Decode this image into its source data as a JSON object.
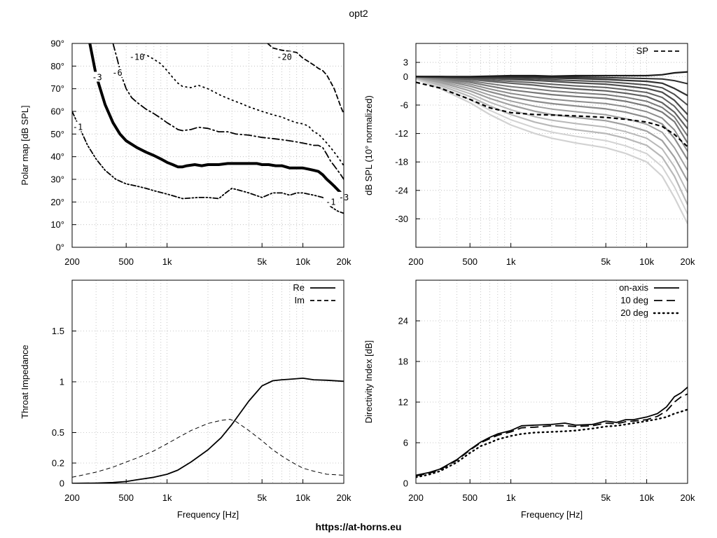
{
  "figure": {
    "title": "opt2",
    "footer": "https://at-horns.eu"
  },
  "chart_data": [
    {
      "id": "polar",
      "type": "line",
      "subtype": "contour",
      "ylabel": "Polar map [dB SPL]",
      "xlabel": "",
      "xscale": "log",
      "xlim": [
        200,
        20000
      ],
      "ylim": [
        0,
        90
      ],
      "xticks": [
        200,
        500,
        1000,
        5000,
        10000,
        20000
      ],
      "xtick_labels": [
        "200",
        "500",
        "1k",
        "5k",
        "10k",
        "20k"
      ],
      "yticks": [
        0,
        10,
        20,
        30,
        40,
        50,
        60,
        70,
        80,
        90
      ],
      "ytick_labels": [
        "0°",
        "10°",
        "20°",
        "30°",
        "40°",
        "50°",
        "60°",
        "70°",
        "80°",
        "90°"
      ],
      "grid": true,
      "series": [
        {
          "label": "-1",
          "style": "dashdotdot",
          "width": 1.8,
          "x": [
            200,
            230,
            260,
            300,
            350,
            420,
            500,
            600,
            700,
            800,
            1000,
            1300,
            1700,
            2000,
            2400,
            2700,
            3000,
            3500,
            4000,
            5000,
            6000,
            7000,
            8000,
            9000,
            10000,
            12000,
            14000,
            16000,
            18000,
            20000
          ],
          "y": [
            60,
            52,
            45,
            39,
            34,
            30,
            28,
            27,
            26,
            25,
            23.5,
            21.5,
            22,
            22,
            21.5,
            24,
            26,
            25,
            24,
            22,
            24,
            24,
            23,
            24,
            24,
            23,
            22,
            18,
            16,
            15
          ]
        },
        {
          "label": "-3",
          "style": "solid",
          "width": 4,
          "x": [
            270,
            300,
            350,
            400,
            450,
            500,
            600,
            700,
            800,
            900,
            1000,
            1100,
            1200,
            1300,
            1400,
            1600,
            1800,
            2000,
            2400,
            2800,
            3200,
            3600,
            4000,
            4600,
            5000,
            5600,
            6300,
            7000,
            8000,
            9000,
            10000,
            11000,
            12000,
            13000,
            14000,
            15000,
            16000,
            17000,
            18000,
            19000
          ],
          "y": [
            90,
            76,
            63,
            55,
            50,
            47,
            44,
            42,
            40.5,
            39,
            37.5,
            36.5,
            35.5,
            35.5,
            36,
            36.5,
            36,
            36.5,
            36.5,
            37,
            37,
            37,
            37,
            37,
            36.5,
            36.5,
            36,
            36,
            35,
            35,
            35,
            34.5,
            34,
            33.5,
            32,
            30,
            28.5,
            27,
            25.5,
            24
          ]
        },
        {
          "label": "-6",
          "style": "dashdot",
          "width": 1.8,
          "x": [
            400,
            430,
            460,
            500,
            550,
            600,
            700,
            800,
            900,
            1000,
            1100,
            1200,
            1300,
            1500,
            1700,
            2000,
            2400,
            2800,
            3200,
            4000,
            5000,
            6000,
            7000,
            8000,
            9000,
            10000,
            11000,
            12000,
            13000,
            14000,
            15000,
            16000,
            17000,
            18000,
            19000,
            20000
          ],
          "y": [
            90,
            83,
            76,
            70,
            66,
            64,
            61,
            59,
            57,
            55,
            53.5,
            52,
            51.5,
            52,
            53,
            52.5,
            51,
            51,
            50,
            49.5,
            48.5,
            48,
            47.5,
            47,
            46.5,
            46,
            45.5,
            45,
            45,
            44,
            41,
            38,
            36,
            34,
            32,
            30
          ]
        },
        {
          "label": "-10",
          "style": "dotted",
          "width": 1.8,
          "x": [
            620,
            700,
            800,
            900,
            1000,
            1100,
            1200,
            1300,
            1500,
            1700,
            2000,
            2500,
            3000,
            3500,
            4000,
            5000,
            6000,
            7000,
            8000,
            9000,
            10000,
            11000,
            12000,
            13000,
            14000,
            15000,
            16000,
            17000,
            18000,
            19000,
            20000
          ],
          "y": [
            85,
            85,
            83,
            81,
            78,
            75,
            72.5,
            71,
            70.5,
            71.5,
            70,
            67,
            65,
            63.5,
            62,
            60,
            58.5,
            57.5,
            56,
            55,
            54.5,
            53.5,
            51,
            50,
            48,
            46,
            44,
            42,
            40,
            38,
            36
          ]
        },
        {
          "label": "-20",
          "style": "dashed",
          "width": 1.8,
          "x": [
            5500,
            6000,
            7000,
            8000,
            9000,
            10000,
            11000,
            12000,
            13000,
            14000,
            15000,
            16000,
            17000,
            18000,
            19000,
            20000
          ],
          "y": [
            90,
            88,
            87,
            86.5,
            86,
            83.5,
            82,
            80.5,
            79,
            78,
            76,
            73,
            70,
            66,
            62,
            59
          ]
        }
      ],
      "labels": [
        {
          "text": "-1",
          "x": 220,
          "y": 53
        },
        {
          "text": "-3",
          "x": 305,
          "y": 75
        },
        {
          "text": "-6",
          "x": 430,
          "y": 77
        },
        {
          "text": "-10",
          "x": 600,
          "y": 84
        },
        {
          "text": "-20",
          "x": 7300,
          "y": 84
        },
        {
          "text": "-1",
          "x": 16000,
          "y": 20
        },
        {
          "text": "-3",
          "x": 20000,
          "y": 22
        }
      ]
    },
    {
      "id": "normalized",
      "type": "line",
      "ylabel": "dB SPL (10° normalized)",
      "xlabel": "",
      "xscale": "log",
      "xlim": [
        200,
        20000
      ],
      "ylim": [
        -36,
        7
      ],
      "xticks": [
        200,
        500,
        1000,
        5000,
        10000,
        20000
      ],
      "xtick_labels": [
        "200",
        "500",
        "1k",
        "5k",
        "10k",
        "20k"
      ],
      "yticks": [
        3,
        0,
        -6,
        -12,
        -18,
        -24,
        -30
      ],
      "ytick_labels": [
        "3",
        "0",
        "-6",
        "-12",
        "-18",
        "-24",
        "-30"
      ],
      "grid": true,
      "legend": {
        "position": "top-right",
        "entries": [
          {
            "label": "SP",
            "style": "dashed"
          }
        ]
      },
      "x": [
        200,
        300,
        500,
        700,
        1000,
        1500,
        2000,
        3000,
        5000,
        7000,
        10000,
        13000,
        16000,
        20000
      ],
      "sp": {
        "name": "SP",
        "y": [
          -1.2,
          -2.4,
          -4.8,
          -6.6,
          -7.6,
          -8.0,
          -8.1,
          -8.3,
          -8.6,
          -9.0,
          -9.6,
          -10.5,
          -12.2,
          -14.8
        ]
      },
      "gray_curves": [
        {
          "angle_deg": 10,
          "color": "#1a1a1a",
          "y": [
            0,
            0,
            0,
            0.1,
            0.2,
            0.2,
            0.1,
            0.2,
            0.2,
            0.2,
            0.2,
            0.4,
            0.8,
            1.0
          ]
        },
        {
          "angle_deg": 20,
          "color": "#303030",
          "y": [
            0,
            0,
            -0.1,
            -0.1,
            -0.1,
            -0.2,
            -0.3,
            -0.4,
            -0.6,
            -0.8,
            -1.0,
            -1.4,
            -2.5,
            -4.0
          ]
        },
        {
          "angle_deg": 30,
          "color": "#4a4a4a",
          "y": [
            0,
            -0.1,
            -0.3,
            -0.4,
            -0.6,
            -0.8,
            -1.0,
            -1.3,
            -1.6,
            -2.0,
            -2.5,
            -3.3,
            -5.0,
            -8.0
          ]
        },
        {
          "angle_deg": 40,
          "color": "#606060",
          "y": [
            0,
            -0.2,
            -0.6,
            -1.0,
            -1.4,
            -1.8,
            -2.2,
            -2.6,
            -3.0,
            -3.5,
            -4.2,
            -5.5,
            -7.5,
            -11.0
          ]
        },
        {
          "angle_deg": 50,
          "color": "#787878",
          "y": [
            0,
            -0.4,
            -1.2,
            -2.0,
            -2.8,
            -3.4,
            -3.8,
            -4.2,
            -4.6,
            -5.2,
            -6.2,
            -7.5,
            -9.5,
            -14.0
          ]
        },
        {
          "angle_deg": 60,
          "color": "#8c8c8c",
          "y": [
            -0.1,
            -0.7,
            -2.0,
            -3.2,
            -4.3,
            -5.2,
            -5.7,
            -6.2,
            -6.8,
            -7.5,
            -8.6,
            -10.0,
            -13.0,
            -17.5
          ]
        },
        {
          "angle_deg": 70,
          "color": "#a0a0a0",
          "y": [
            -0.2,
            -1.2,
            -3.0,
            -4.6,
            -6.0,
            -7.3,
            -8.0,
            -8.6,
            -9.3,
            -10.2,
            -11.5,
            -13.5,
            -17.0,
            -22.0
          ]
        },
        {
          "angle_deg": 80,
          "color": "#b8b8b8",
          "y": [
            -0.3,
            -1.8,
            -4.2,
            -6.2,
            -8.0,
            -9.6,
            -10.4,
            -11.2,
            -12.0,
            -13.0,
            -14.5,
            -17.0,
            -21.0,
            -27.0
          ]
        },
        {
          "angle_deg": 90,
          "color": "#d2d2d2",
          "y": [
            -0.5,
            -2.5,
            -5.5,
            -8.0,
            -10.2,
            -12.0,
            -13.0,
            -14.0,
            -15.0,
            -16.2,
            -18.0,
            -21.0,
            -25.5,
            -31.0
          ]
        }
      ]
    },
    {
      "id": "impedance",
      "type": "line",
      "ylabel": "Throat Impedance",
      "xlabel": "Frequency [Hz]",
      "xscale": "log",
      "xlim": [
        200,
        20000
      ],
      "ylim": [
        0,
        2
      ],
      "xticks": [
        200,
        500,
        1000,
        5000,
        10000,
        20000
      ],
      "xtick_labels": [
        "200",
        "500",
        "1k",
        "5k",
        "10k",
        "20k"
      ],
      "yticks": [
        0,
        0.2,
        0.5,
        1,
        1.5
      ],
      "ytick_labels": [
        "0",
        "0.2",
        "0.5",
        "1",
        "1.5"
      ],
      "grid": true,
      "legend": {
        "position": "top-right",
        "entries": [
          {
            "label": "Re",
            "style": "solid"
          },
          {
            "label": "Im",
            "style": "dashed"
          }
        ]
      },
      "series": [
        {
          "name": "Re",
          "style": "solid",
          "x": [
            200,
            300,
            400,
            500,
            600,
            800,
            1000,
            1200,
            1500,
            2000,
            2500,
            3000,
            4000,
            5000,
            6000,
            7000,
            8000,
            10000,
            12000,
            15000,
            20000
          ],
          "y": [
            0.0,
            0.003,
            0.008,
            0.018,
            0.035,
            0.06,
            0.09,
            0.13,
            0.21,
            0.33,
            0.45,
            0.58,
            0.81,
            0.96,
            1.01,
            1.02,
            1.025,
            1.035,
            1.02,
            1.015,
            1.005
          ]
        },
        {
          "name": "Im",
          "style": "dashed",
          "x": [
            200,
            300,
            400,
            500,
            600,
            800,
            1000,
            1200,
            1500,
            2000,
            2500,
            2900,
            3200,
            4000,
            5000,
            6000,
            7000,
            8000,
            10000,
            12000,
            15000,
            20000
          ],
          "y": [
            0.06,
            0.11,
            0.16,
            0.21,
            0.25,
            0.32,
            0.39,
            0.45,
            0.52,
            0.59,
            0.62,
            0.63,
            0.61,
            0.52,
            0.42,
            0.33,
            0.27,
            0.22,
            0.15,
            0.12,
            0.09,
            0.08
          ]
        }
      ]
    },
    {
      "id": "directivity",
      "type": "line",
      "ylabel": "Directivity Index [dB]",
      "xlabel": "Frequency [Hz]",
      "xscale": "log",
      "xlim": [
        200,
        20000
      ],
      "ylim": [
        0,
        30
      ],
      "xticks": [
        200,
        500,
        1000,
        5000,
        10000,
        20000
      ],
      "xtick_labels": [
        "200",
        "500",
        "1k",
        "5k",
        "10k",
        "20k"
      ],
      "yticks": [
        0,
        6,
        12,
        18,
        24
      ],
      "ytick_labels": [
        "0",
        "6",
        "12",
        "18",
        "24"
      ],
      "grid": true,
      "legend": {
        "position": "top-right",
        "entries": [
          {
            "label": "on-axis",
            "style": "solid"
          },
          {
            "label": "10 deg",
            "style": "longdash"
          },
          {
            "label": "20 deg",
            "style": "dotted"
          }
        ]
      },
      "series": [
        {
          "name": "on-axis",
          "style": "solid",
          "x": [
            200,
            250,
            300,
            400,
            500,
            600,
            700,
            800,
            1000,
            1200,
            1500,
            2000,
            2500,
            3000,
            4000,
            5000,
            6000,
            7000,
            8000,
            10000,
            12000,
            14000,
            16000,
            18000,
            20000
          ],
          "y": [
            1.2,
            1.6,
            2.1,
            3.5,
            5.0,
            6.1,
            6.8,
            7.3,
            7.8,
            8.5,
            8.6,
            8.7,
            8.9,
            8.6,
            8.7,
            9.2,
            9.0,
            9.4,
            9.4,
            9.8,
            10.3,
            11.3,
            12.8,
            13.4,
            14.2
          ]
        },
        {
          "name": "10 deg",
          "style": "longdash",
          "x": [
            200,
            250,
            300,
            400,
            500,
            600,
            700,
            800,
            1000,
            1200,
            1500,
            2000,
            2500,
            3000,
            4000,
            5000,
            6000,
            7000,
            8000,
            10000,
            12000,
            14000,
            16000,
            18000,
            20000
          ],
          "y": [
            1.1,
            1.5,
            2.0,
            3.4,
            4.9,
            6.0,
            6.6,
            7.1,
            7.6,
            8.2,
            8.3,
            8.5,
            8.5,
            8.4,
            8.5,
            8.9,
            8.8,
            9.1,
            9.2,
            9.4,
            9.9,
            10.7,
            12.0,
            12.8,
            13.2
          ]
        },
        {
          "name": "20 deg",
          "style": "dotted",
          "x": [
            200,
            250,
            300,
            400,
            500,
            600,
            700,
            800,
            1000,
            1200,
            1500,
            2000,
            2500,
            3000,
            4000,
            5000,
            6000,
            7000,
            8000,
            10000,
            12000,
            14000,
            16000,
            18000,
            20000
          ],
          "y": [
            0.9,
            1.3,
            1.8,
            3.1,
            4.5,
            5.5,
            6.0,
            6.5,
            7.0,
            7.3,
            7.5,
            7.6,
            7.7,
            7.8,
            8.1,
            8.4,
            8.5,
            8.7,
            8.9,
            9.2,
            9.5,
            9.8,
            10.3,
            10.6,
            10.9
          ]
        }
      ]
    }
  ]
}
